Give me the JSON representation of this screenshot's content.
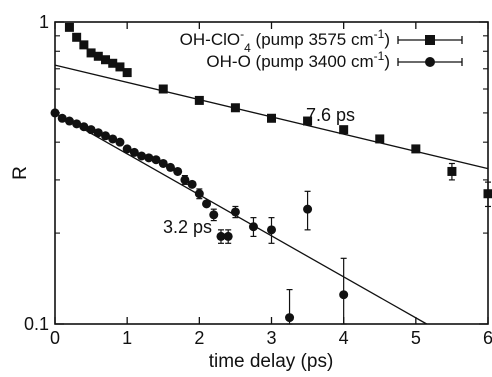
{
  "chart_data": {
    "type": "scatter",
    "xlabel": "time delay (ps)",
    "ylabel": "R",
    "xlim": [
      0,
      6
    ],
    "ylim": [
      0.1,
      1
    ],
    "y_scale": "log",
    "x_ticks": [
      0,
      1,
      2,
      3,
      4,
      5,
      6
    ],
    "y_ticks": [
      {
        "value": 1,
        "label": "1"
      },
      {
        "value": 0.1,
        "label": "0.1"
      }
    ],
    "legend_position": "top-right",
    "series": [
      {
        "name_main": "OH-ClO",
        "name_sub": "4",
        "name_sup": "-",
        "name_rest": " (pump 3575 cm",
        "name_rest_sup": "-1",
        "name_end": ")",
        "marker": "square",
        "color": "#111111",
        "x": [
          0.2,
          0.3,
          0.4,
          0.5,
          0.6,
          0.7,
          0.8,
          0.9,
          1.0,
          1.5,
          2.0,
          2.5,
          3.0,
          3.5,
          4.0,
          4.5,
          5.0,
          5.5,
          6.0
        ],
        "y": [
          0.96,
          0.89,
          0.84,
          0.79,
          0.77,
          0.75,
          0.73,
          0.71,
          0.68,
          0.6,
          0.55,
          0.52,
          0.48,
          0.47,
          0.44,
          0.41,
          0.38,
          0.32,
          0.27
        ],
        "yerr": [
          0,
          0,
          0,
          0,
          0,
          0,
          0,
          0,
          0,
          0,
          0,
          0,
          0,
          0,
          0,
          0,
          0,
          0.02,
          0.025
        ],
        "fit": {
          "y0": 0.72,
          "tau": 7.6
        },
        "fit_label": "7.6 ps"
      },
      {
        "name_main": "OH-O",
        "name_rest": " (pump 3400 cm",
        "name_rest_sup": "-1",
        "name_end": ")",
        "marker": "circle",
        "color": "#111111",
        "x": [
          0.0,
          0.1,
          0.2,
          0.3,
          0.4,
          0.5,
          0.6,
          0.7,
          0.8,
          0.9,
          1.0,
          1.1,
          1.2,
          1.3,
          1.4,
          1.5,
          1.6,
          1.7,
          1.8,
          1.9,
          2.0,
          2.1,
          2.2,
          2.3,
          2.4,
          2.5,
          2.75,
          3.0,
          3.25,
          3.5,
          4.0
        ],
        "y": [
          0.5,
          0.48,
          0.47,
          0.46,
          0.45,
          0.44,
          0.43,
          0.42,
          0.41,
          0.4,
          0.38,
          0.37,
          0.36,
          0.355,
          0.35,
          0.34,
          0.33,
          0.32,
          0.3,
          0.29,
          0.27,
          0.25,
          0.23,
          0.195,
          0.195,
          0.235,
          0.21,
          0.205,
          0.105,
          0.24,
          0.125
        ],
        "yerr": [
          0,
          0,
          0,
          0,
          0,
          0,
          0,
          0,
          0,
          0,
          0,
          0,
          0,
          0,
          0,
          0,
          0,
          0,
          0.01,
          0,
          0.01,
          0,
          0.01,
          0.01,
          0.01,
          0.01,
          0.015,
          0.02,
          0.025,
          0.035,
          0.04
        ],
        "fit": {
          "y0": 0.5,
          "tau": 3.2
        },
        "fit_label": "3.2 ps"
      }
    ]
  }
}
